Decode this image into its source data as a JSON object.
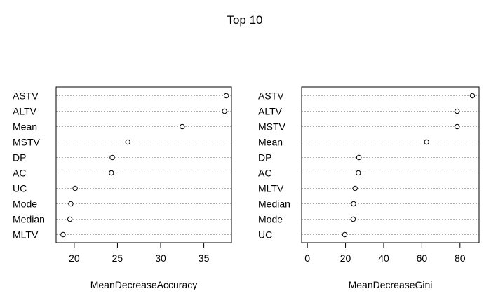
{
  "title": "Top 10",
  "chart_data": [
    {
      "type": "scatter",
      "subtype": "dotchart",
      "xlabel": "MeanDecreaseAccuracy",
      "categories": [
        "ASTV",
        "ALTV",
        "Mean",
        "MSTV",
        "DP",
        "AC",
        "UC",
        "Mode",
        "Median",
        "MLTV"
      ],
      "values": [
        37.6,
        37.4,
        32.5,
        26.2,
        24.4,
        24.3,
        20.1,
        19.6,
        19.5,
        18.7
      ],
      "xlim": [
        17.9,
        38.2
      ],
      "xticks": [
        20,
        25,
        30,
        35
      ]
    },
    {
      "type": "scatter",
      "subtype": "dotchart",
      "xlabel": "MeanDecreaseGini",
      "categories": [
        "ASTV",
        "ALTV",
        "MSTV",
        "Mean",
        "DP",
        "AC",
        "MLTV",
        "Median",
        "Mode",
        "UC"
      ],
      "values": [
        86.5,
        78.5,
        78.5,
        62.5,
        27.0,
        26.7,
        25.0,
        24.2,
        24.0,
        19.6
      ],
      "xlim": [
        -3.0,
        90.0
      ],
      "xticks": [
        0,
        20,
        40,
        60,
        80
      ]
    }
  ]
}
